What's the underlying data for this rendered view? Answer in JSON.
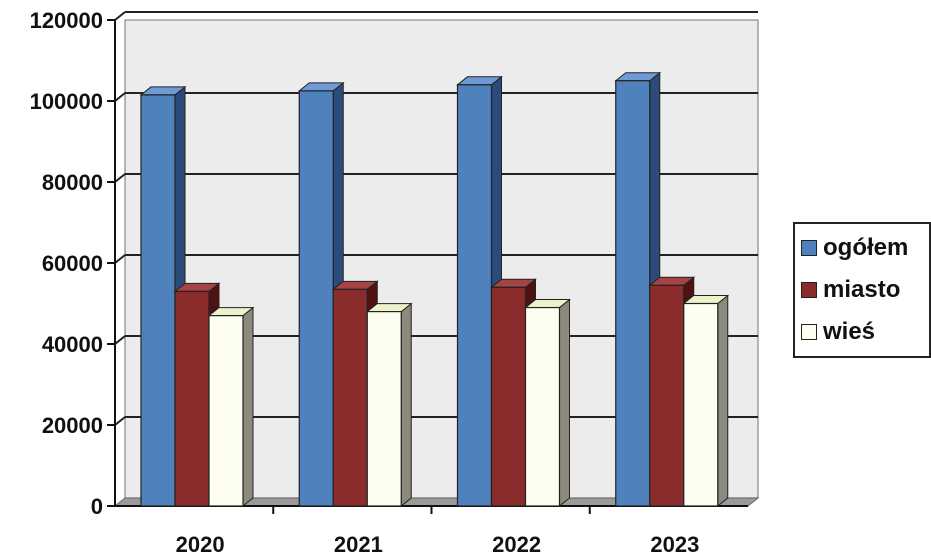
{
  "chart_data": {
    "type": "bar",
    "title": "",
    "xlabel": "",
    "ylabel": "",
    "ylim": [
      0,
      120000
    ],
    "y_ticks": [
      "0",
      "20000",
      "40000",
      "60000",
      "80000",
      "100000",
      "120000"
    ],
    "y_tick_values": [
      0,
      20000,
      40000,
      60000,
      80000,
      100000,
      120000
    ],
    "categories": [
      "2020",
      "2021",
      "2022",
      "2023"
    ],
    "grid": true,
    "style": "3d-clustered-column",
    "legend_position": "right",
    "series": [
      {
        "name": "ogółem",
        "color": "#4f81bd",
        "values": [
          101500,
          102500,
          104000,
          105000
        ]
      },
      {
        "name": "miasto",
        "color": "#8b2c2c",
        "values": [
          53000,
          53500,
          54000,
          54500
        ]
      },
      {
        "name": "wieś",
        "color": "#fdfdf0",
        "values": [
          47000,
          48000,
          49000,
          50000
        ]
      }
    ]
  }
}
